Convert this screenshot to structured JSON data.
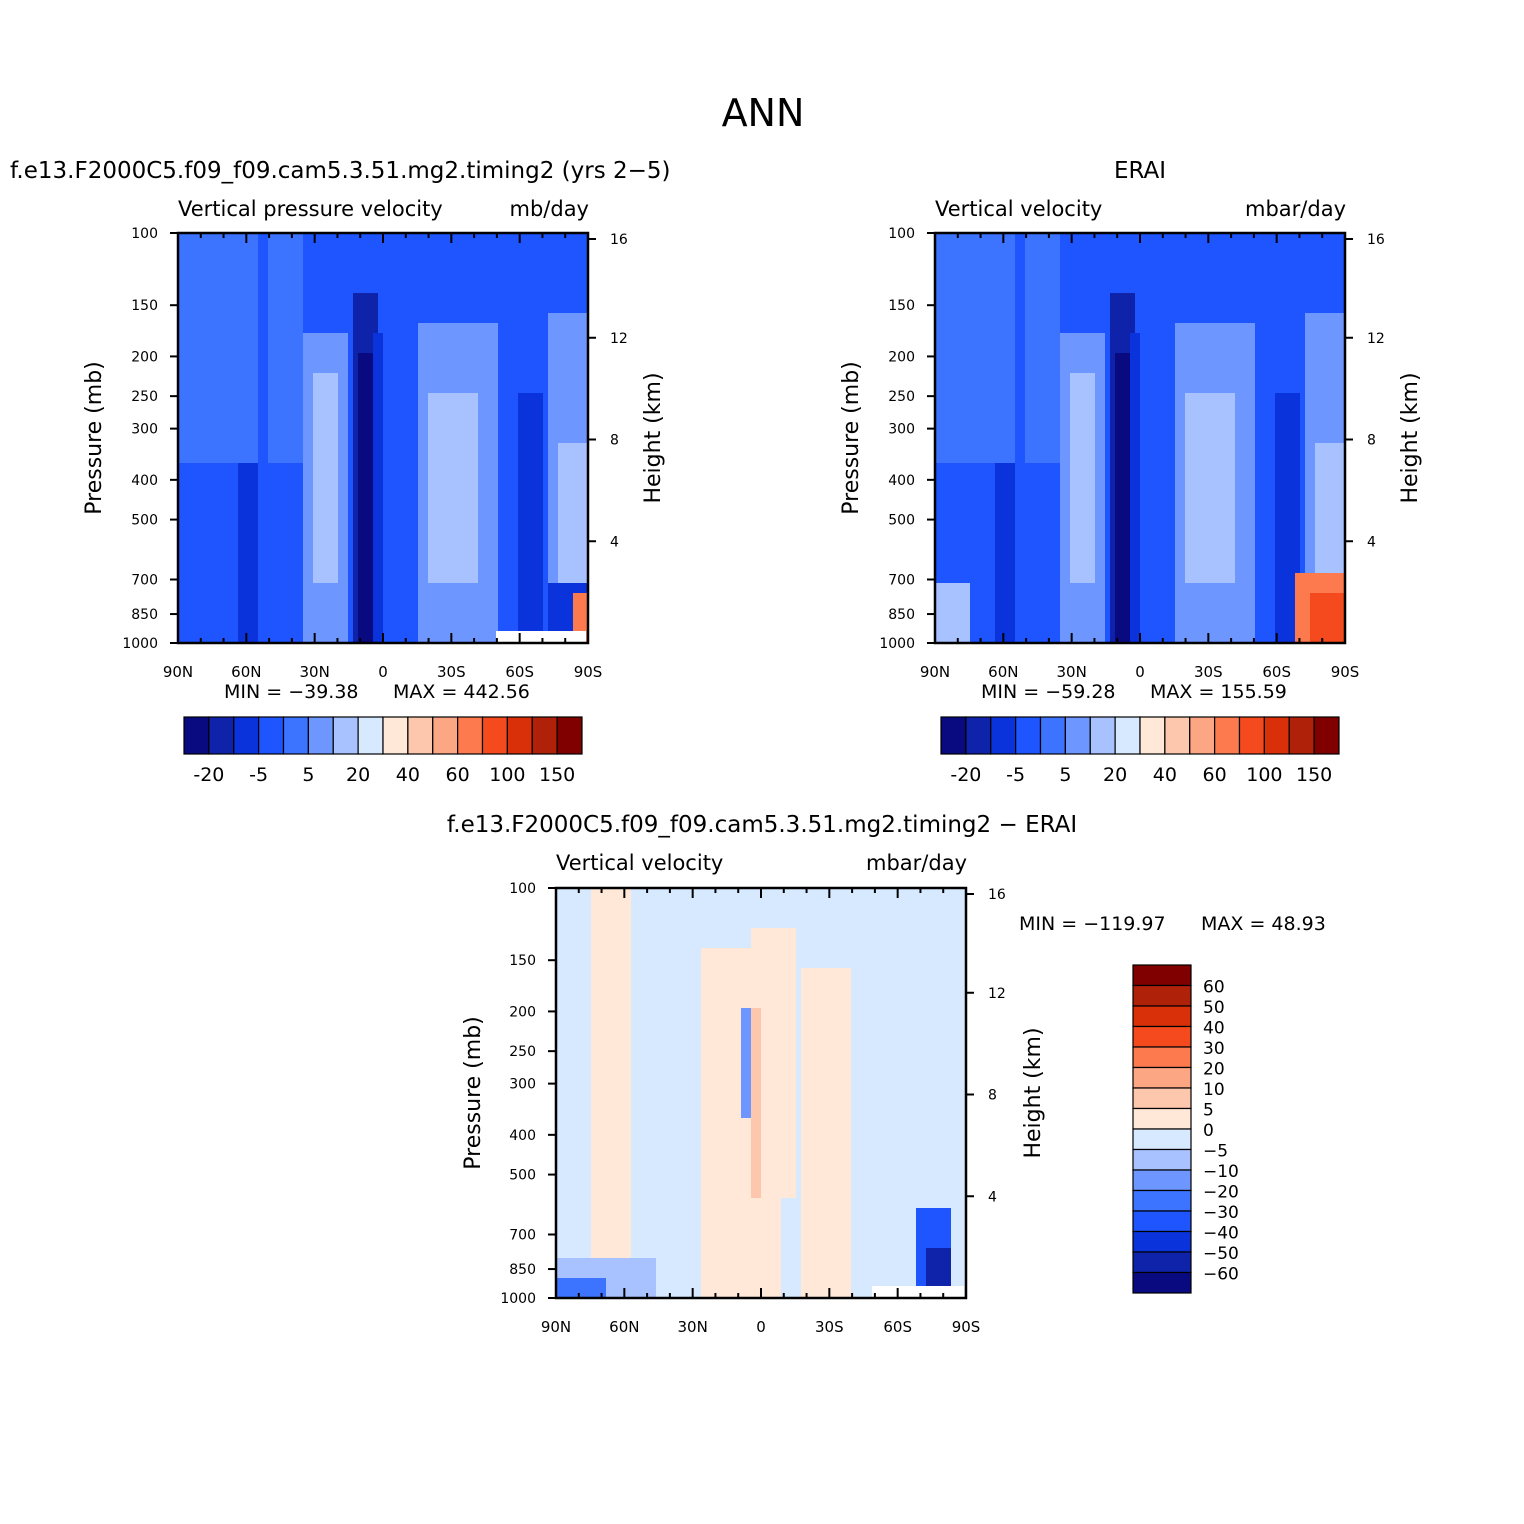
{
  "figure": {
    "title": "ANN"
  },
  "colorbar_top": {
    "colors": [
      "#0a0a80",
      "#0f23aa",
      "#0a33dc",
      "#1e55ff",
      "#3c73ff",
      "#6e96ff",
      "#a8c2ff",
      "#d6e9ff",
      "#ffe8d8",
      "#fdc7ae",
      "#fca683",
      "#fd7a4f",
      "#f54a1e",
      "#d9300a",
      "#b0210a",
      "#800000"
    ],
    "tick_labels": [
      "-20",
      "-5",
      "5",
      "20",
      "40",
      "60",
      "100",
      "150"
    ]
  },
  "colorbar_diff": {
    "colors": [
      "#0a0a80",
      "#0f23aa",
      "#0a33dc",
      "#1e55ff",
      "#3c73ff",
      "#6e96ff",
      "#a8c2ff",
      "#d6e9ff",
      "#ffe8d8",
      "#fdc7ae",
      "#fca683",
      "#fd7a4f",
      "#f54a1e",
      "#d9300a",
      "#b0210a",
      "#800000"
    ],
    "tick_labels": [
      "60",
      "50",
      "40",
      "30",
      "20",
      "10",
      "5",
      "0",
      "−5",
      "−10",
      "−20",
      "−30",
      "−40",
      "−50",
      "−60"
    ]
  },
  "chart_data": [
    {
      "type": "heatmap",
      "panel": "model",
      "title": "f.e13.F2000C5.f09_f09.cam5.3.51.mg2.timing2 (yrs 2−5)",
      "left_label": "Vertical pressure velocity",
      "right_label": "mb/day",
      "xlabel": "",
      "ylabel": "Pressure (mb)",
      "y2label": "Height (km)",
      "x_ticks": [
        "90N",
        "60N",
        "30N",
        "0",
        "30S",
        "60S",
        "90S"
      ],
      "y_ticks": [
        "100",
        "150",
        "200",
        "250",
        "300",
        "400",
        "500",
        "700",
        "850",
        "1000"
      ],
      "y2_ticks": [
        "16",
        "12",
        "8",
        "4"
      ],
      "y_log": true,
      "ylim": [
        1000,
        100
      ],
      "xlim": [
        90,
        -90
      ],
      "min_label": "MIN = −39.38",
      "max_label": "MAX = 442.56",
      "min": -39.38,
      "max": 442.56
    },
    {
      "type": "heatmap",
      "panel": "obs",
      "title": "ERAI",
      "left_label": "Vertical velocity",
      "right_label": "mbar/day",
      "xlabel": "",
      "ylabel": "Pressure (mb)",
      "y2label": "Height (km)",
      "x_ticks": [
        "90N",
        "60N",
        "30N",
        "0",
        "30S",
        "60S",
        "90S"
      ],
      "y_ticks": [
        "100",
        "150",
        "200",
        "250",
        "300",
        "400",
        "500",
        "700",
        "850",
        "1000"
      ],
      "y2_ticks": [
        "16",
        "12",
        "8",
        "4"
      ],
      "y_log": true,
      "ylim": [
        1000,
        100
      ],
      "xlim": [
        90,
        -90
      ],
      "min_label": "MIN = −59.28",
      "max_label": "MAX = 155.59",
      "min": -59.28,
      "max": 155.59
    },
    {
      "type": "heatmap",
      "panel": "diff",
      "title": "f.e13.F2000C5.f09_f09.cam5.3.51.mg2.timing2 − ERAI",
      "left_label": "Vertical velocity",
      "right_label": "mbar/day",
      "xlabel": "",
      "ylabel": "Pressure (mb)",
      "y2label": "Height (km)",
      "x_ticks": [
        "90N",
        "60N",
        "30N",
        "0",
        "30S",
        "60S",
        "90S"
      ],
      "y_ticks": [
        "100",
        "150",
        "200",
        "250",
        "300",
        "400",
        "500",
        "700",
        "850",
        "1000"
      ],
      "y2_ticks": [
        "16",
        "12",
        "8",
        "4"
      ],
      "y_log": true,
      "ylim": [
        1000,
        100
      ],
      "xlim": [
        90,
        -90
      ],
      "min_label": "MIN = −119.97",
      "max_label": "MAX =  48.93",
      "min": -119.97,
      "max": 48.93
    }
  ]
}
